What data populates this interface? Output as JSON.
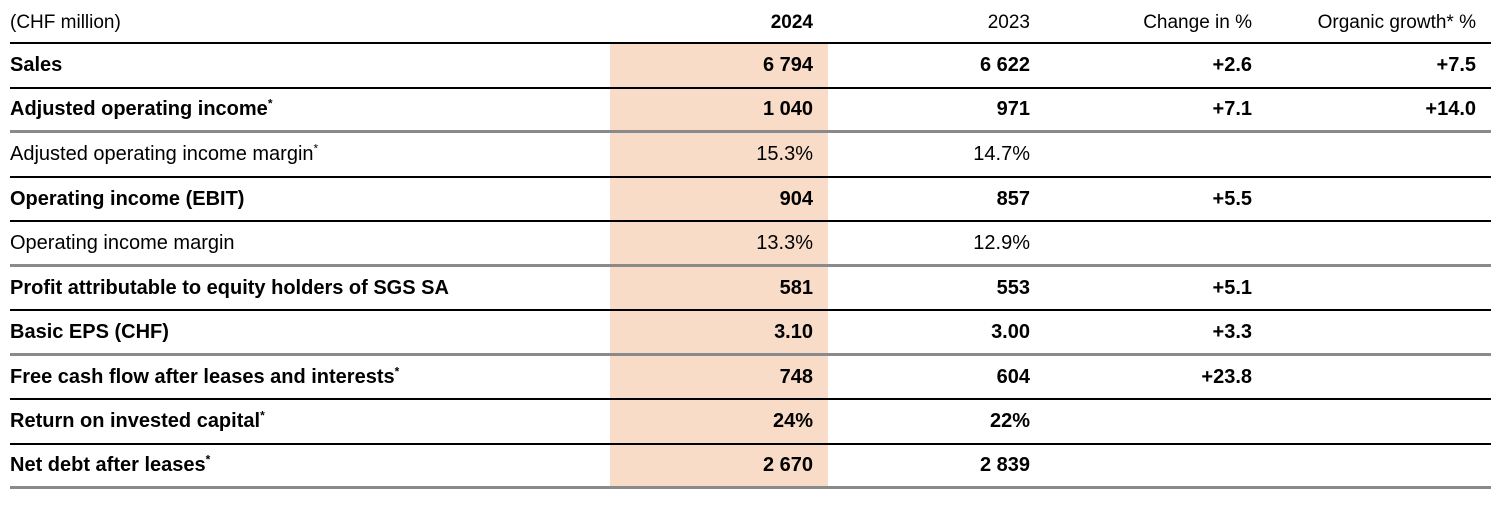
{
  "unit_label": "(CHF million)",
  "highlight_color": "#f8dcc7",
  "table": {
    "columns": {
      "year_current": "2024",
      "year_prior": "2023",
      "change": "Change in %",
      "organic": "Organic growth* %"
    },
    "rows": [
      {
        "label": "Sales",
        "v2024": "6 794",
        "v2023": "6 622",
        "change": "+2.6",
        "organic": "+7.5"
      },
      {
        "label": "Adjusted operating income",
        "sup": "*",
        "v2024": "1 040",
        "v2023": "971",
        "change": "+7.1",
        "organic": "+14.0"
      },
      {
        "label": "Adjusted operating income margin",
        "sup": "*",
        "v2024": "15.3%",
        "v2023": "14.7%",
        "change": "",
        "organic": ""
      },
      {
        "label": "Operating income (EBIT)",
        "v2024": "904",
        "v2023": "857",
        "change": "+5.5",
        "organic": ""
      },
      {
        "label": "Operating income margin",
        "v2024": "13.3%",
        "v2023": "12.9%",
        "change": "",
        "organic": ""
      },
      {
        "label": "Profit attributable to equity holders of SGS SA",
        "v2024": "581",
        "v2023": "553",
        "change": "+5.1",
        "organic": ""
      },
      {
        "label": "Basic EPS (CHF)",
        "v2024": "3.10",
        "v2023": "3.00",
        "change": "+3.3",
        "organic": ""
      },
      {
        "label": "Free cash flow after leases and interests",
        "sup": "*",
        "v2024": "748",
        "v2023": "604",
        "change": "+23.8",
        "organic": ""
      },
      {
        "label": "Return on invested capital",
        "sup": "*",
        "v2024": "24%",
        "v2023": "22%",
        "change": "",
        "organic": ""
      },
      {
        "label": "Net debt after leases",
        "sup": "*",
        "v2024": "2 670",
        "v2023": "2 839",
        "change": "",
        "organic": ""
      }
    ]
  }
}
